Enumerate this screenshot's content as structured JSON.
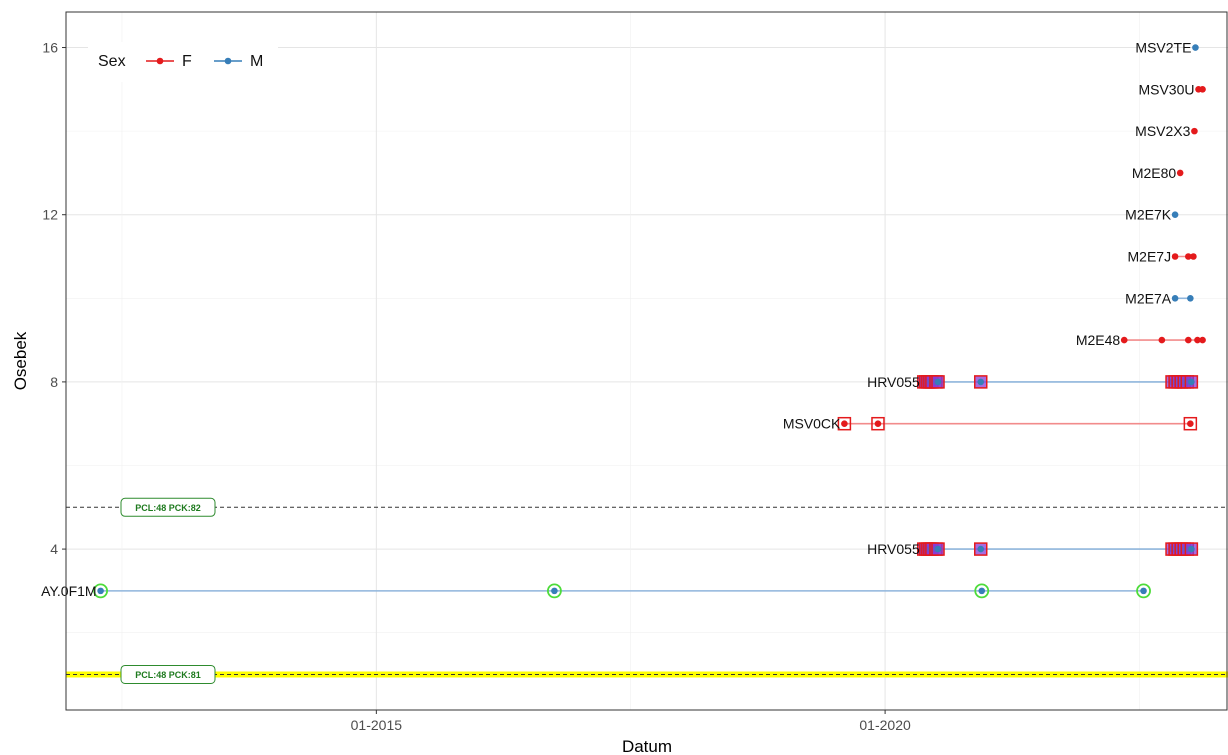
{
  "chart_data": {
    "type": "scatter",
    "xlabel": "Datum",
    "ylabel": "Osebek",
    "xlim": [
      2011.95,
      2023.37
    ],
    "ylim": [
      0.15,
      16.85
    ],
    "x_ticks": [
      {
        "value": 2015,
        "label": "01-2015"
      },
      {
        "value": 2020,
        "label": "01-2020"
      }
    ],
    "y_ticks": [
      {
        "value": 4,
        "label": "4"
      },
      {
        "value": 8,
        "label": "8"
      },
      {
        "value": 12,
        "label": "12"
      },
      {
        "value": 16,
        "label": "16"
      }
    ],
    "grid": true,
    "legend": {
      "title": "Sex",
      "position": "top-left",
      "entries": [
        {
          "label": "F",
          "color": "#e41a1c"
        },
        {
          "label": "M",
          "color": "#377eb8"
        }
      ]
    },
    "colors": {
      "F": "#e41a1c",
      "M": "#377eb8",
      "F_line": "#f28b8b",
      "M_line": "#8fb5dc",
      "green_ring": "#4ddc3a",
      "red_square": "#e41a1c",
      "purple_fill": "#8a3bd6"
    },
    "hlines": [
      {
        "y": 5,
        "style": "dashed",
        "label": "PCL:48 PCK:82",
        "highlight": false
      },
      {
        "y": 1,
        "style": "dashed",
        "label": "PCL:48 PCK:81",
        "highlight": true
      }
    ],
    "series": [
      {
        "name": "MSV2TE",
        "sex": "M",
        "y": 16,
        "x": [
          2023.05
        ]
      },
      {
        "name": "MSV30U",
        "sex": "F",
        "y": 15,
        "x": [
          2023.08,
          2023.12
        ]
      },
      {
        "name": "MSV2X3",
        "sex": "F",
        "y": 14,
        "x": [
          2023.04
        ]
      },
      {
        "name": "M2E80",
        "sex": "F",
        "y": 13,
        "x": [
          2022.9
        ]
      },
      {
        "name": "M2E7K",
        "sex": "M",
        "y": 12,
        "x": [
          2022.85
        ]
      },
      {
        "name": "M2E7J",
        "sex": "F",
        "y": 11,
        "x": [
          2022.85,
          2022.98,
          2023.03
        ]
      },
      {
        "name": "M2E7A",
        "sex": "M",
        "y": 10,
        "x": [
          2022.85,
          2023.0
        ]
      },
      {
        "name": "M2E48",
        "sex": "F",
        "y": 9,
        "x": [
          2022.35,
          2022.72,
          2022.98,
          2023.07,
          2023.12
        ]
      },
      {
        "name": "HRV055",
        "sex": "M",
        "y": 8,
        "marker": "square",
        "x": [
          2020.38,
          2020.4,
          2020.42,
          2020.44,
          2020.46,
          2020.5,
          2020.52,
          2020.94,
          2022.82,
          2022.85,
          2022.88,
          2022.91,
          2022.94,
          2022.97,
          2023.01
        ]
      },
      {
        "name": "MSV0CK",
        "sex": "F",
        "y": 7,
        "marker": "square",
        "x": [
          2019.6,
          2019.93,
          2023.0
        ]
      },
      {
        "name": "HRV055",
        "sex": "M",
        "y": 4,
        "marker": "square",
        "x": [
          2020.38,
          2020.4,
          2020.42,
          2020.44,
          2020.46,
          2020.5,
          2020.52,
          2020.94,
          2022.82,
          2022.85,
          2022.88,
          2022.91,
          2022.94,
          2022.97,
          2023.01
        ]
      },
      {
        "name": "AY.0F1M",
        "sex": "M",
        "y": 3,
        "marker": "ring",
        "x": [
          2012.29,
          2016.75,
          2020.95,
          2022.54
        ]
      }
    ]
  }
}
